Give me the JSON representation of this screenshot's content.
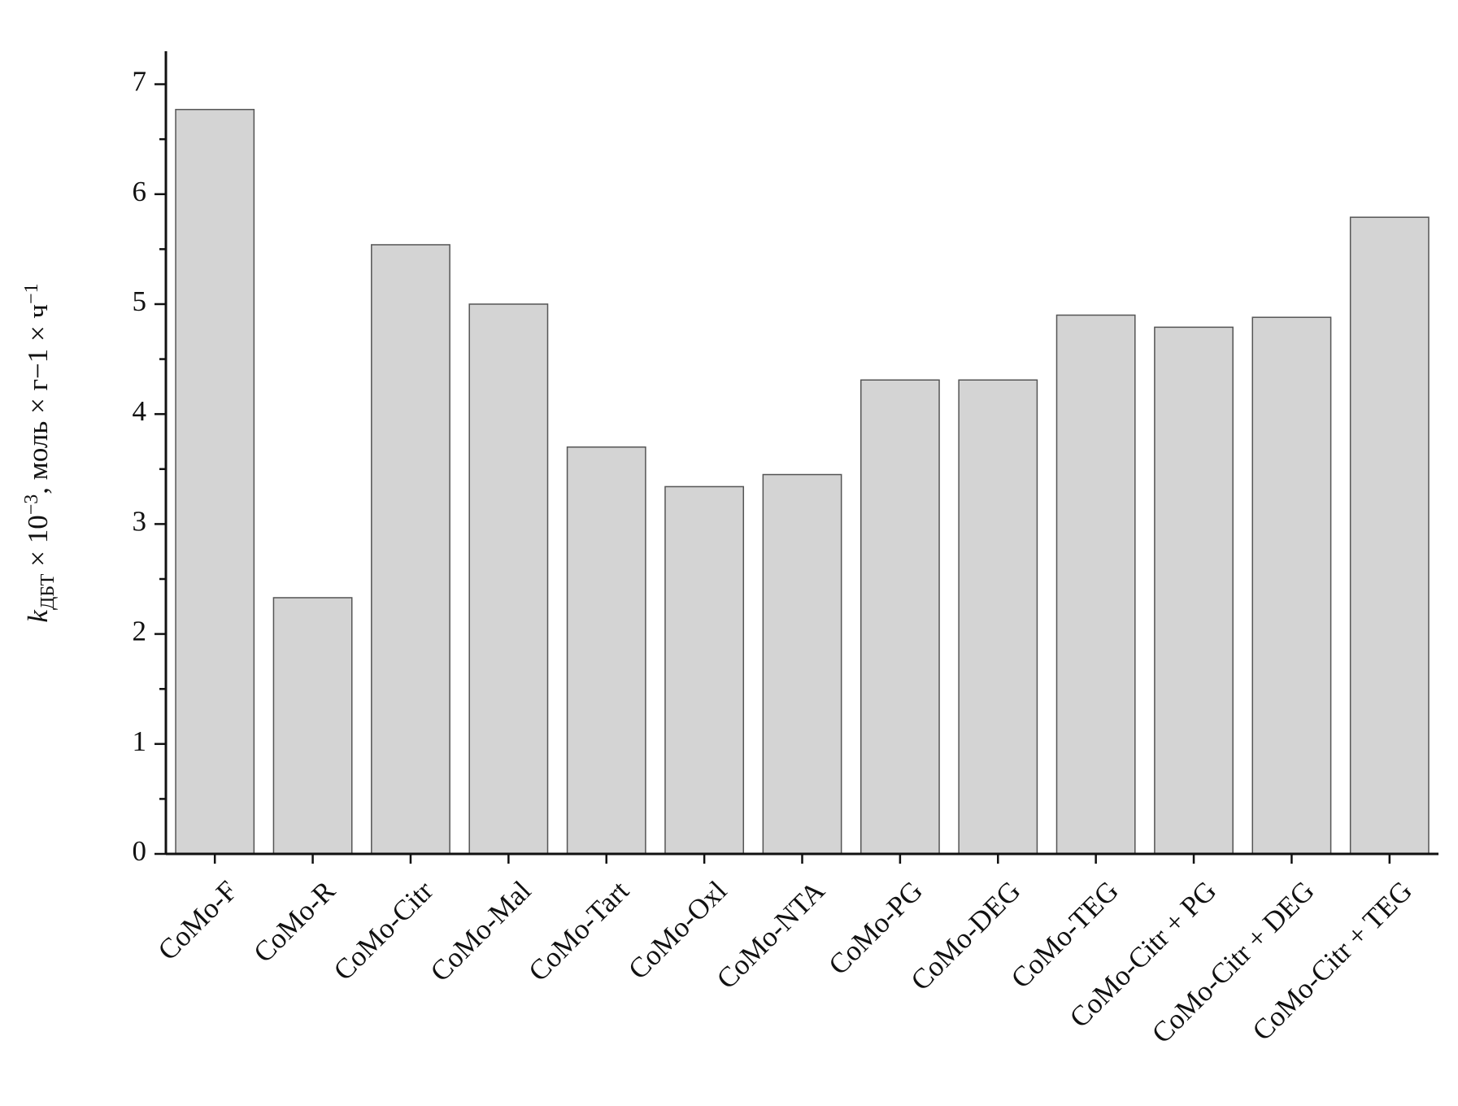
{
  "chart_data": {
    "type": "bar",
    "y_label": {
      "symbol": "k",
      "subscript": "ДБТ",
      "part1": " × 10",
      "sup1": "−3",
      "part2": ", моль × г−1 × ч",
      "sup2": "−1"
    },
    "categories": [
      "CoMo-F",
      "CoMo-R",
      "CoMo-Citr",
      "CoMo-Mal",
      "CoMo-Tart",
      "CoMo-Oxl",
      "CoMo-NTA",
      "CoMo-PG",
      "CoMo-DEG",
      "CoMo-TEG",
      "CoMo-Citr + PG",
      "CoMo-Citr + DEG",
      "CoMo-Citr + TEG"
    ],
    "values": [
      6.77,
      2.33,
      5.54,
      5.0,
      3.7,
      3.34,
      3.45,
      4.31,
      4.31,
      4.9,
      4.79,
      4.88,
      5.79
    ],
    "color": "#d4d4d4",
    "ylim": [
      0,
      7.3
    ],
    "yticks": [
      0,
      1,
      2,
      3,
      4,
      5,
      6,
      7
    ],
    "yminorticks": [
      0.5,
      1.5,
      2.5,
      3.5,
      4.5,
      5.5,
      6.5
    ],
    "grid": false
  }
}
